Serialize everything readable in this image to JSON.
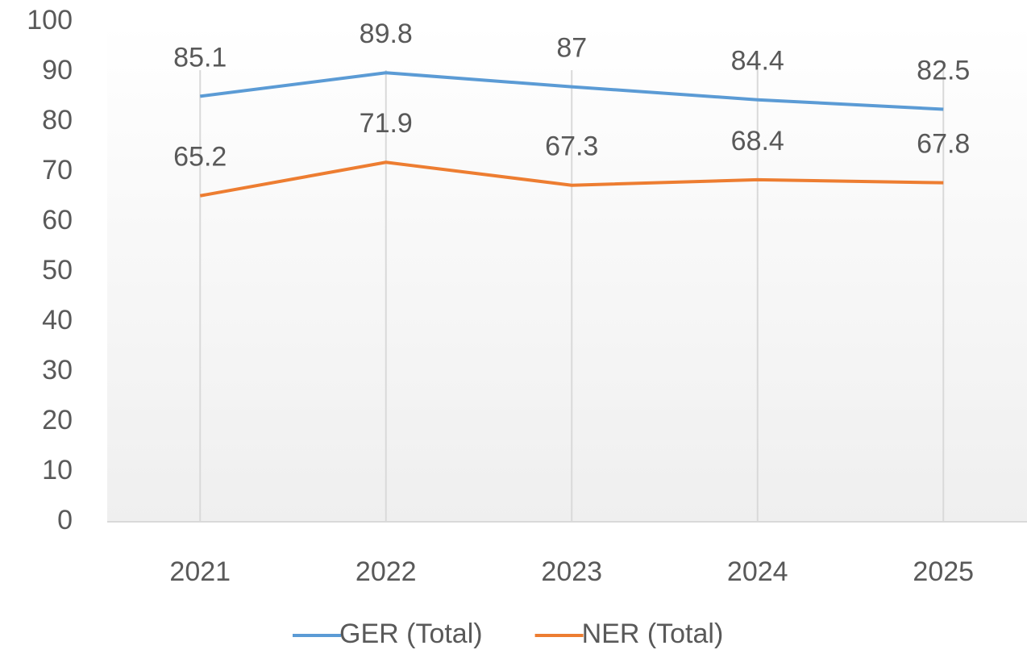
{
  "chart_data": {
    "type": "line",
    "categories": [
      "2021",
      "2022",
      "2023",
      "2024",
      "2025"
    ],
    "series": [
      {
        "name": "GER (Total)",
        "color": "#5b9bd5",
        "values": [
          85.1,
          89.8,
          87,
          84.4,
          82.5
        ]
      },
      {
        "name": "NER (Total)",
        "color": "#ed7d31",
        "values": [
          65.2,
          71.9,
          67.3,
          68.4,
          67.8
        ]
      }
    ],
    "ylim": [
      0,
      100
    ],
    "yticks": [
      0,
      10,
      20,
      30,
      40,
      50,
      60,
      70,
      80,
      90,
      100
    ],
    "vertical_grid": true,
    "data_labels": true,
    "legend": "bottom"
  }
}
